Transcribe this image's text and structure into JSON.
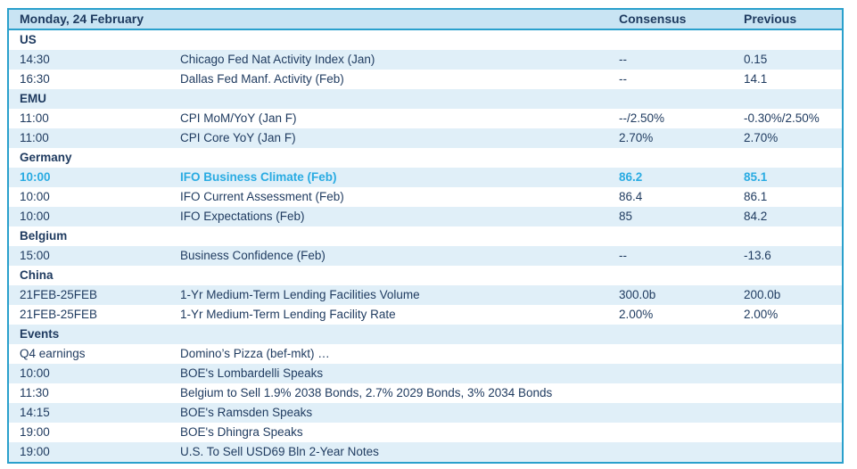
{
  "table": {
    "title": "Monday, 24 February",
    "columns": {
      "consensus": "Consensus",
      "previous": "Previous"
    },
    "colors": {
      "border": "#2AA0CC",
      "header_bg": "#C9E4F3",
      "stripe_bg": "#E0EFF8",
      "text": "#1E3A5F",
      "highlight": "#29ABE2",
      "page_bg": "#FFFFFF"
    },
    "sections": [
      {
        "name": "US",
        "rows": [
          {
            "time": "14:30",
            "event": "Chicago Fed Nat Activity Index (Jan)",
            "consensus": "--",
            "previous": "0.15",
            "highlight": false
          },
          {
            "time": "16:30",
            "event": "Dallas Fed Manf. Activity (Feb)",
            "consensus": "--",
            "previous": "14.1",
            "highlight": false
          }
        ]
      },
      {
        "name": "EMU",
        "rows": [
          {
            "time": "11:00",
            "event": "CPI MoM/YoY (Jan F)",
            "consensus": "--/2.50%",
            "previous": "-0.30%/2.50%",
            "highlight": false
          },
          {
            "time": "11:00",
            "event": "CPI Core YoY (Jan F)",
            "consensus": "2.70%",
            "previous": "2.70%",
            "highlight": false
          }
        ]
      },
      {
        "name": "Germany",
        "rows": [
          {
            "time": "10:00",
            "event": "IFO Business Climate (Feb)",
            "consensus": "86.2",
            "previous": "85.1",
            "highlight": true
          },
          {
            "time": "10:00",
            "event": "IFO Current Assessment (Feb)",
            "consensus": "86.4",
            "previous": "86.1",
            "highlight": false
          },
          {
            "time": "10:00",
            "event": "IFO Expectations (Feb)",
            "consensus": "85",
            "previous": "84.2",
            "highlight": false
          }
        ]
      },
      {
        "name": "Belgium",
        "rows": [
          {
            "time": "15:00",
            "event": "Business Confidence (Feb)",
            "consensus": "--",
            "previous": "-13.6",
            "highlight": false
          }
        ]
      },
      {
        "name": "China",
        "rows": [
          {
            "time": "21FEB-25FEB",
            "event": "1-Yr Medium-Term Lending Facilities Volume",
            "consensus": "300.0b",
            "previous": "200.0b",
            "highlight": false
          },
          {
            "time": "21FEB-25FEB",
            "event": "1-Yr Medium-Term Lending Facility Rate",
            "consensus": "2.00%",
            "previous": "2.00%",
            "highlight": false
          }
        ]
      },
      {
        "name": "Events",
        "rows": [
          {
            "time": "Q4 earnings",
            "event": "Domino’s Pizza (bef-mkt) …",
            "consensus": "",
            "previous": "",
            "highlight": false
          },
          {
            "time": "10:00",
            "event": "BOE's Lombardelli Speaks",
            "consensus": "",
            "previous": "",
            "highlight": false
          },
          {
            "time": "11:30",
            "event": "Belgium to Sell 1.9% 2038 Bonds, 2.7% 2029 Bonds, 3% 2034 Bonds",
            "consensus": "",
            "previous": "",
            "highlight": false
          },
          {
            "time": "14:15",
            "event": "BOE's Ramsden Speaks",
            "consensus": "",
            "previous": "",
            "highlight": false
          },
          {
            "time": "19:00",
            "event": "BOE's Dhingra Speaks",
            "consensus": "",
            "previous": "",
            "highlight": false
          },
          {
            "time": "19:00",
            "event": "U.S. To Sell USD69 Bln 2-Year Notes",
            "consensus": "",
            "previous": "",
            "highlight": false
          }
        ]
      }
    ]
  }
}
